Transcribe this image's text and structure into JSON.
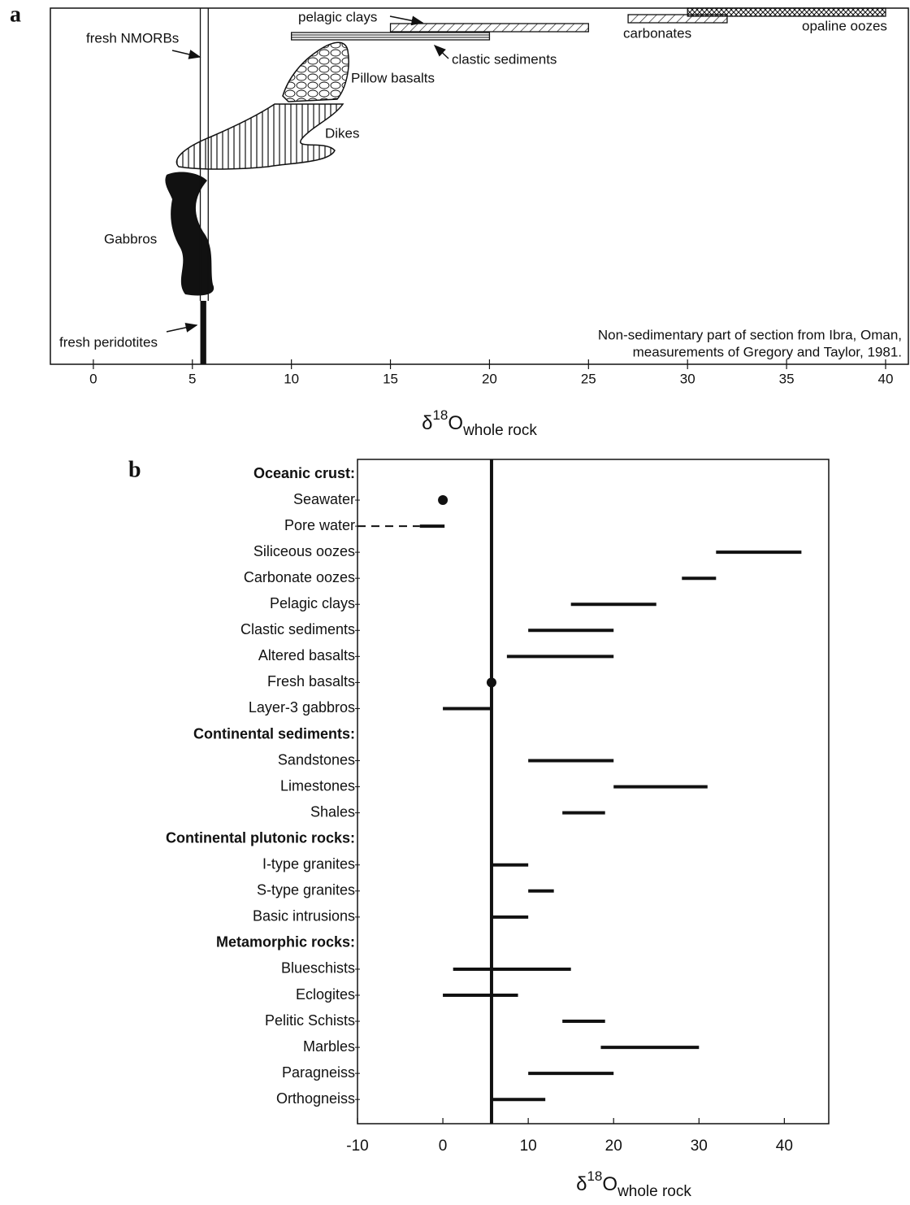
{
  "chart_data": [
    {
      "type": "profile",
      "panel_label": "a",
      "xlim": [
        -2.17,
        41.15
      ],
      "xticks": [
        0,
        5,
        10,
        15,
        20,
        25,
        30,
        35,
        40
      ],
      "xlabel": [
        "δ",
        "18",
        "O",
        "whole rock"
      ],
      "sediments": [
        {
          "name": "opaline oozes",
          "values": [
            30,
            40
          ]
        },
        {
          "name": "carbonates",
          "values": [
            27,
            32
          ]
        },
        {
          "name": "pelagic clays",
          "values": [
            15,
            25
          ]
        },
        {
          "name": "clastic sediments",
          "values": [
            10,
            20
          ]
        }
      ],
      "features": [
        {
          "name": "fresh NMORBs",
          "values": [
            5.4,
            5.8
          ]
        },
        {
          "name": "fresh peridotites",
          "values": [
            5.4,
            5.7
          ]
        }
      ],
      "units": [
        "Pillow basalts",
        "Dikes",
        "Gabbros"
      ],
      "annotation": [
        "Non-sedimentary part of section from Ibra, Oman,",
        "measurements of Gregory and Taylor, 1981."
      ]
    },
    {
      "type": "range",
      "panel_label": "b",
      "xlim": [
        -10,
        45.2
      ],
      "xticks": [
        -10,
        0,
        10,
        20,
        30,
        40
      ],
      "xlabel": [
        "δ",
        "18",
        "O",
        "whole rock"
      ],
      "reference_line": 5.7,
      "rows": [
        {
          "label": "Oceanic crust:",
          "header": true
        },
        {
          "label": "Seawater",
          "value": 0
        },
        {
          "label": "Pore water",
          "range": [
            -2.7,
            0.2
          ],
          "dashed": [
            -10,
            -2.7
          ]
        },
        {
          "label": "Siliceous oozes",
          "range": [
            32,
            42
          ]
        },
        {
          "label": "Carbonate oozes",
          "range": [
            28,
            32
          ]
        },
        {
          "label": "Pelagic clays",
          "range": [
            15,
            25
          ]
        },
        {
          "label": "Clastic sediments",
          "range": [
            10,
            20
          ]
        },
        {
          "label": "Altered basalts",
          "range": [
            7.5,
            20
          ]
        },
        {
          "label": "Fresh basalts",
          "value": 5.7
        },
        {
          "label": "Layer-3 gabbros",
          "range": [
            0,
            5.7
          ]
        },
        {
          "label": "Continental sediments:",
          "header": true
        },
        {
          "label": "Sandstones",
          "range": [
            10,
            20
          ]
        },
        {
          "label": "Limestones",
          "range": [
            20,
            31
          ]
        },
        {
          "label": "Shales",
          "range": [
            14,
            19
          ]
        },
        {
          "label": "Continental plutonic rocks:",
          "header": true
        },
        {
          "label": "I-type granites",
          "range": [
            5.7,
            10
          ]
        },
        {
          "label": "S-type granites",
          "range": [
            10,
            13
          ]
        },
        {
          "label": "Basic intrusions",
          "range": [
            5.7,
            10
          ]
        },
        {
          "label": "Metamorphic rocks:",
          "header": true
        },
        {
          "label": "Blueschists",
          "range": [
            1.2,
            15
          ]
        },
        {
          "label": "Eclogites",
          "range": [
            0,
            8.8
          ]
        },
        {
          "label": "Pelitic Schists",
          "range": [
            14,
            19
          ]
        },
        {
          "label": "Marbles",
          "range": [
            18.5,
            30
          ]
        },
        {
          "label": "Paragneiss",
          "range": [
            10,
            20
          ]
        },
        {
          "label": "Orthogneiss",
          "range": [
            5.7,
            12
          ]
        }
      ]
    }
  ]
}
